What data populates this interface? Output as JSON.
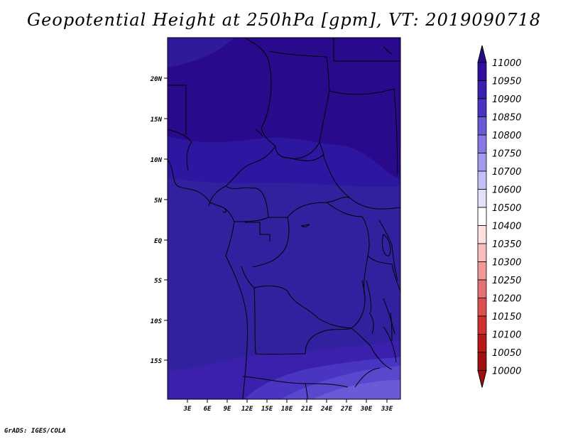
{
  "title": "Geopotential Height at 250hPa [gpm], VT: 2019090718",
  "credit": "GrADS: IGES/COLA",
  "map": {
    "lat_labels": [
      "20N",
      "15N",
      "10N",
      "5N",
      "EQ",
      "5S",
      "10S",
      "15S"
    ],
    "lon_labels": [
      "3E",
      "6E",
      "9E",
      "12E",
      "15E",
      "18E",
      "21E",
      "24E",
      "27E",
      "30E",
      "33E"
    ]
  },
  "colorbar": {
    "levels": [
      "11000",
      "10950",
      "10900",
      "10850",
      "10800",
      "10750",
      "10700",
      "10600",
      "10500",
      "10400",
      "10350",
      "10300",
      "10250",
      "10200",
      "10150",
      "10100",
      "10050",
      "10000"
    ],
    "colors": [
      "#2a0a8c",
      "#300fa0",
      "#3a20ad",
      "#4a35c2",
      "#6a5ad8",
      "#8878e6",
      "#a39bef",
      "#c4bff6",
      "#e2e0fb",
      "#ffffff",
      "#ffe0e0",
      "#f8bcbc",
      "#f09898",
      "#e47272",
      "#dc5050",
      "#cf3030",
      "#b81818",
      "#a01010"
    ]
  }
}
